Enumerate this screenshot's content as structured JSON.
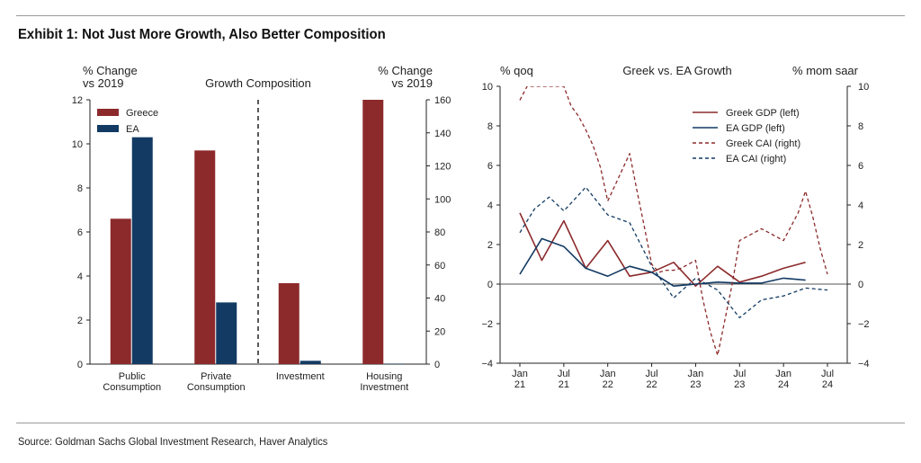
{
  "header": {
    "title": "Exhibit 1: Not Just More Growth, Also Better Composition"
  },
  "footer": {
    "source": "Source: Goldman Sachs Global Investment Research, Haver Analytics"
  },
  "colors": {
    "greece": "#8c2a2b",
    "ea": "#123a63"
  },
  "chart_data": [
    {
      "type": "bar",
      "title": "Growth Composition",
      "ylabel_left": [
        "% Change",
        "vs 2019"
      ],
      "ylabel_right": [
        "% Change",
        "vs 2019"
      ],
      "ylim_left": [
        0,
        12
      ],
      "yticks_left": [
        0,
        2,
        4,
        6,
        8,
        10,
        12
      ],
      "ylim_right": [
        0,
        160
      ],
      "yticks_right": [
        0,
        20,
        40,
        60,
        80,
        100,
        120,
        140,
        160
      ],
      "categories": [
        {
          "lines": [
            "Public",
            "Consumption"
          ],
          "axis": "left"
        },
        {
          "lines": [
            "Private",
            "Consumption"
          ],
          "axis": "left"
        },
        {
          "lines": [
            "Investment"
          ],
          "axis": "right"
        },
        {
          "lines": [
            "Housing",
            "Investment"
          ],
          "axis": "right"
        }
      ],
      "series": [
        {
          "name": "Greece",
          "values": [
            6.6,
            9.7,
            49,
            160
          ]
        },
        {
          "name": "EA",
          "values": [
            10.3,
            2.8,
            2,
            0.3
          ]
        }
      ],
      "divider_after_category": 1,
      "legend": "top-left"
    },
    {
      "type": "line",
      "title": "Greek vs. EA Growth",
      "ylabel_left": "% qoq",
      "ylabel_right": "% mom saar",
      "ylim_left": [
        -4,
        10
      ],
      "yticks_left": [
        -4,
        -2,
        0,
        2,
        4,
        6,
        8,
        10
      ],
      "ylim_right": [
        -4,
        10
      ],
      "yticks_right": [
        -4,
        -2,
        0,
        2,
        4,
        6,
        8,
        10
      ],
      "xlim": [
        "2021-01",
        "2024-07"
      ],
      "xticks": [
        {
          "x": "2021-01",
          "lines": [
            "Jan",
            "21"
          ]
        },
        {
          "x": "2021-07",
          "lines": [
            "Jul",
            "21"
          ]
        },
        {
          "x": "2022-01",
          "lines": [
            "Jan",
            "22"
          ]
        },
        {
          "x": "2022-07",
          "lines": [
            "Jul",
            "22"
          ]
        },
        {
          "x": "2023-01",
          "lines": [
            "Jan",
            "23"
          ]
        },
        {
          "x": "2023-07",
          "lines": [
            "Jul",
            "23"
          ]
        },
        {
          "x": "2024-01",
          "lines": [
            "Jan",
            "24"
          ]
        },
        {
          "x": "2024-07",
          "lines": [
            "Jul",
            "24"
          ]
        }
      ],
      "series": [
        {
          "name": "Greek GDP (left)",
          "axis": "left",
          "style": "solid",
          "x": [
            "2021-01",
            "2021-04",
            "2021-07",
            "2021-10",
            "2022-01",
            "2022-04",
            "2022-07",
            "2022-10",
            "2023-01",
            "2023-04",
            "2023-07",
            "2023-10",
            "2024-01",
            "2024-04"
          ],
          "values": [
            3.6,
            1.2,
            3.2,
            0.8,
            2.2,
            0.4,
            0.6,
            1.1,
            -0.1,
            0.9,
            0.1,
            0.4,
            0.8,
            1.1
          ]
        },
        {
          "name": "EA GDP (left)",
          "axis": "left",
          "style": "solid",
          "x": [
            "2021-01",
            "2021-04",
            "2021-07",
            "2021-10",
            "2022-01",
            "2022-04",
            "2022-07",
            "2022-10",
            "2023-01",
            "2023-04",
            "2023-07",
            "2023-10",
            "2024-01",
            "2024-04"
          ],
          "values": [
            0.5,
            2.3,
            1.9,
            0.8,
            0.4,
            0.9,
            0.6,
            -0.1,
            0.0,
            0.1,
            0.05,
            0.05,
            0.3,
            0.2
          ]
        },
        {
          "name": "Greek CAI (right)",
          "axis": "right",
          "style": "dashed",
          "x": [
            "2021-01",
            "2021-02",
            "2021-07",
            "2021-08",
            "2021-09",
            "2021-10",
            "2021-11",
            "2021-12",
            "2022-01",
            "2022-02",
            "2022-03",
            "2022-04",
            "2022-05",
            "2022-06",
            "2022-07",
            "2022-08",
            "2022-09",
            "2022-10",
            "2022-11",
            "2022-12",
            "2023-01",
            "2023-02",
            "2023-03",
            "2023-04",
            "2023-05",
            "2023-06",
            "2023-07",
            "2023-08",
            "2023-09",
            "2023-10",
            "2023-11",
            "2023-12",
            "2024-01",
            "2024-02",
            "2024-03",
            "2024-04",
            "2024-05",
            "2024-06",
            "2024-07"
          ],
          "values": [
            9.3,
            10.0,
            10.0,
            9.0,
            8.5,
            7.8,
            7.0,
            5.9,
            4.2,
            5.0,
            5.8,
            6.6,
            4.7,
            2.9,
            1.0,
            0.6,
            0.7,
            0.7,
            0.8,
            1.0,
            1.2,
            -0.8,
            -2.4,
            -3.6,
            -1.8,
            0.0,
            2.2,
            2.4,
            2.6,
            2.8,
            2.6,
            2.4,
            2.2,
            2.9,
            3.6,
            4.7,
            3.4,
            1.8,
            0.5
          ]
        },
        {
          "name": "EA CAI (right)",
          "axis": "right",
          "style": "dashed",
          "x": [
            "2021-01",
            "2021-03",
            "2021-05",
            "2021-07",
            "2021-10",
            "2022-01",
            "2022-04",
            "2022-07",
            "2022-10",
            "2023-01",
            "2023-04",
            "2023-07",
            "2023-10",
            "2024-01",
            "2024-04",
            "2024-07"
          ],
          "values": [
            2.6,
            3.8,
            4.4,
            3.7,
            4.9,
            3.5,
            3.1,
            0.9,
            -0.7,
            0.3,
            -0.3,
            -1.7,
            -0.8,
            -0.6,
            -0.2,
            -0.3
          ]
        }
      ],
      "zero_line": true,
      "legend": "top-right"
    }
  ]
}
